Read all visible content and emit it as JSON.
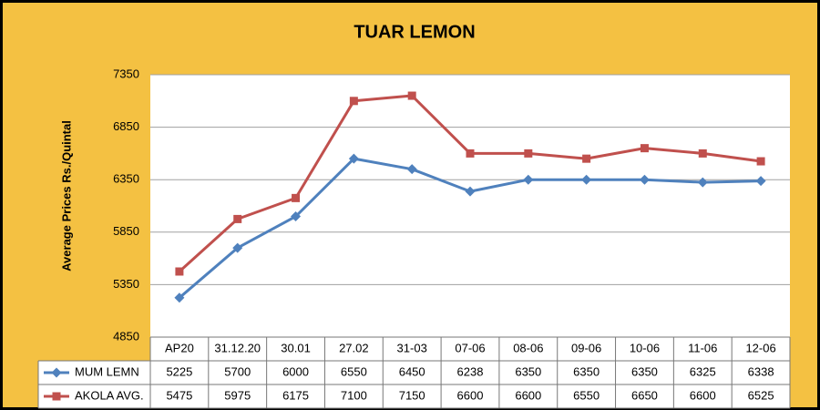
{
  "chart_data": {
    "type": "line",
    "title": "TUAR LEMON",
    "y_label": "Average Prices  Rs./Quintal",
    "categories": [
      "AP20",
      "31.12.20",
      "30.01",
      "27.02",
      "31-03",
      "07-06",
      "08-06",
      "09-06",
      "10-06",
      "11-06",
      "12-06"
    ],
    "series": [
      {
        "name": "MUM LEMN",
        "color": "#4f81bd",
        "marker": "diamond",
        "values": [
          5225,
          5700,
          6000,
          6550,
          6450,
          6238,
          6350,
          6350,
          6350,
          6325,
          6338
        ]
      },
      {
        "name": "AKOLA AVG.",
        "color": "#c0504d",
        "marker": "square",
        "values": [
          5475,
          5975,
          6175,
          7100,
          7150,
          6600,
          6600,
          6550,
          6650,
          6600,
          6525
        ]
      }
    ],
    "ylim": [
      4850,
      7350
    ],
    "yticks": [
      4850,
      5350,
      5850,
      6350,
      6850,
      7350
    ],
    "grid": true,
    "data_table": true
  }
}
